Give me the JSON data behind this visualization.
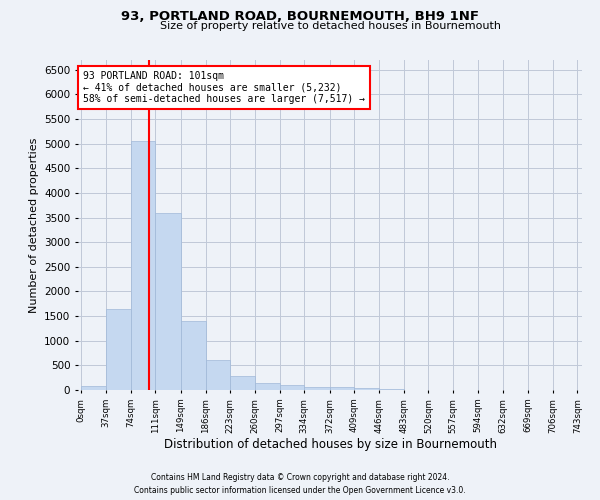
{
  "title1": "93, PORTLAND ROAD, BOURNEMOUTH, BH9 1NF",
  "title2": "Size of property relative to detached houses in Bournemouth",
  "xlabel": "Distribution of detached houses by size in Bournemouth",
  "ylabel": "Number of detached properties",
  "bar_edges": [
    0,
    37,
    74,
    111,
    149,
    186,
    223,
    260,
    297,
    334,
    372,
    409,
    446,
    483,
    520,
    557,
    594,
    632,
    669,
    706,
    743
  ],
  "bar_heights": [
    75,
    1650,
    5050,
    3600,
    1410,
    615,
    290,
    140,
    100,
    70,
    55,
    50,
    30,
    0,
    0,
    0,
    0,
    0,
    0,
    0
  ],
  "bar_color": "#c5d8f0",
  "bar_edge_color": "#a0b8d8",
  "grid_color": "#c0c8d8",
  "vline_x": 101,
  "vline_color": "red",
  "annotation_line1": "93 PORTLAND ROAD: 101sqm",
  "annotation_line2": "← 41% of detached houses are smaller (5,232)",
  "annotation_line3": "58% of semi-detached houses are larger (7,517) →",
  "ylim": [
    0,
    6700
  ],
  "yticks": [
    0,
    500,
    1000,
    1500,
    2000,
    2500,
    3000,
    3500,
    4000,
    4500,
    5000,
    5500,
    6000,
    6500
  ],
  "tick_labels": [
    "0sqm",
    "37sqm",
    "74sqm",
    "111sqm",
    "149sqm",
    "186sqm",
    "223sqm",
    "260sqm",
    "297sqm",
    "334sqm",
    "372sqm",
    "409sqm",
    "446sqm",
    "483sqm",
    "520sqm",
    "557sqm",
    "594sqm",
    "632sqm",
    "669sqm",
    "706sqm",
    "743sqm"
  ],
  "footer1": "Contains HM Land Registry data © Crown copyright and database right 2024.",
  "footer2": "Contains public sector information licensed under the Open Government Licence v3.0.",
  "background_color": "#eef2f8"
}
